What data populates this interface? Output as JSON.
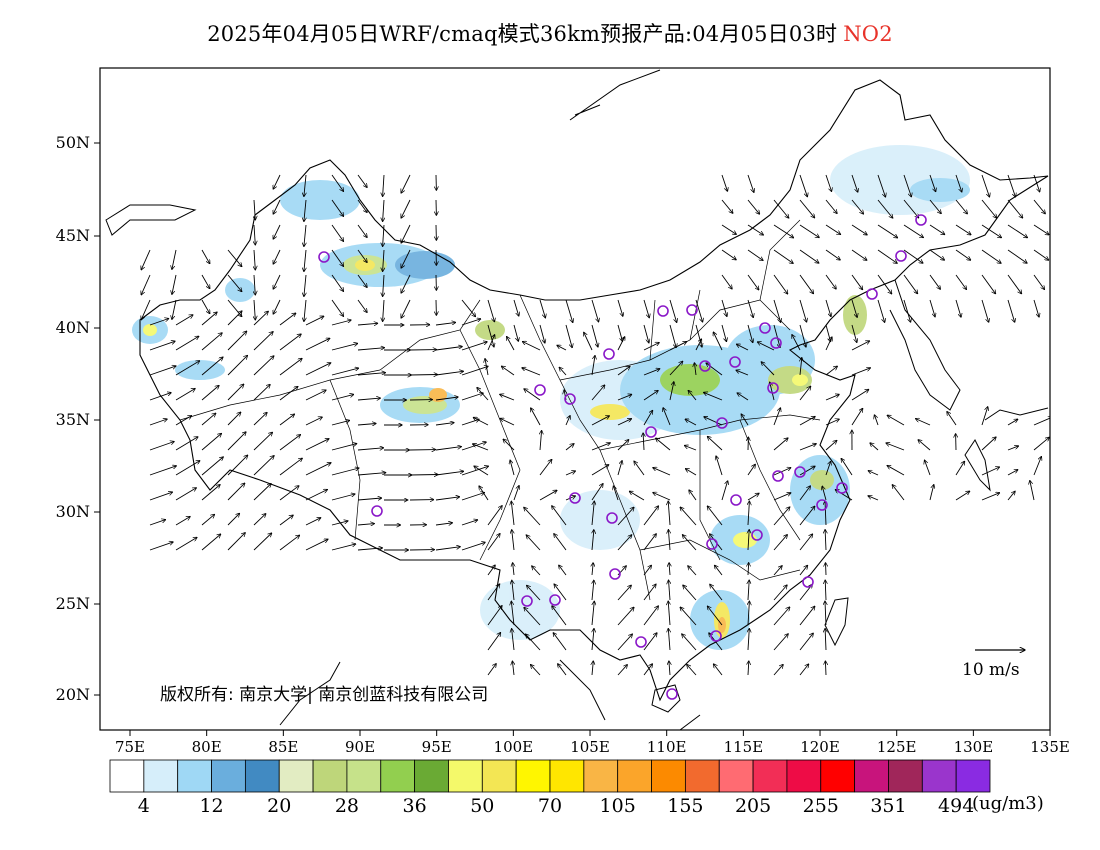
{
  "title": {
    "main": "2025年04月05日WRF/cmaq模式36km预报产品:04月05日03时",
    "pollutant": "NO2"
  },
  "axes": {
    "lat_labels": [
      "50N",
      "45N",
      "40N",
      "35N",
      "30N",
      "25N",
      "20N"
    ],
    "lon_labels": [
      "75E",
      "80E",
      "85E",
      "90E",
      "95E",
      "100E",
      "105E",
      "110E",
      "115E",
      "120E",
      "125E",
      "130E",
      "135E"
    ]
  },
  "copyright": "版权所有: 南京大学| 南京创蓝科技有限公司",
  "wind_scale": {
    "label": "10 m/s"
  },
  "legend": {
    "colors": [
      "#ffffff",
      "#d6eefa",
      "#9fd8f5",
      "#6aaedd",
      "#418ac2",
      "#e2ecc2",
      "#bed67a",
      "#c6e28a",
      "#92cf4f",
      "#6aaa34",
      "#f4f96a",
      "#f3e654",
      "#fff600",
      "#ffe600",
      "#f9b545",
      "#fba52a",
      "#fc8a00",
      "#f26a2e",
      "#ff6b72",
      "#f22e56",
      "#ee0c46",
      "#ff0000",
      "#c8147c",
      "#a0265a",
      "#9a35cc",
      "#8a2be2"
    ],
    "tick_labels": [
      "4",
      "12",
      "20",
      "28",
      "36",
      "50",
      "70",
      "105",
      "155",
      "205",
      "255",
      "351",
      "494"
    ],
    "unit": "(ug/m3)"
  },
  "icons": {
    "city_marker": "circle-marker-icon",
    "wind_vector": "wind-arrow-icon"
  },
  "colors": {
    "frame": "#000000",
    "title_pollutant": "#e8332a",
    "city_marker": "#8a18c8"
  }
}
